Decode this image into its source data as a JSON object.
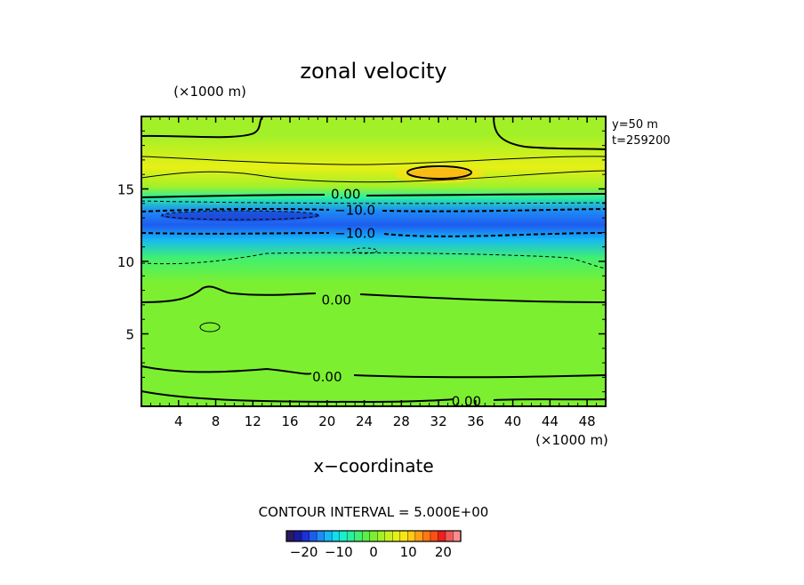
{
  "chart_data": {
    "type": "heatmap",
    "title": "zonal velocity",
    "xlabel": "x−coordinate",
    "x_unit": "(×1000 m)",
    "y_unit": "(×1000 m)",
    "info_lines": [
      "y=50  m",
      "t=259200"
    ],
    "xlim": [
      0,
      50
    ],
    "ylim": [
      0,
      20
    ],
    "x_ticks": [
      4,
      8,
      12,
      16,
      20,
      24,
      28,
      32,
      36,
      40,
      44,
      48
    ],
    "y_ticks": [
      5,
      10,
      15
    ],
    "contour_interval_text": "CONTOUR INTERVAL = 5.000E+00",
    "contour_labels": [
      {
        "text": "0.00",
        "x": 22,
        "y": 14.7
      },
      {
        "text": "−10.0",
        "x": 23,
        "y": 13.6
      },
      {
        "text": "−10.0",
        "x": 23,
        "y": 12.0
      },
      {
        "text": "0.00",
        "x": 21,
        "y": 7.4
      },
      {
        "text": "0.00",
        "x": 20,
        "y": 2.1
      },
      {
        "text": "0.00",
        "x": 35,
        "y": 0.4
      }
    ],
    "colorbar": {
      "range": [
        -25,
        25
      ],
      "tick_values": [
        -20,
        -10,
        0,
        10,
        20
      ],
      "tick_labels": [
        "−20",
        "−10",
        "0",
        "10",
        "20"
      ],
      "colors": [
        "#2a1a5e",
        "#1a1aa0",
        "#1a32d6",
        "#1e5cf0",
        "#1e8cf5",
        "#16b8f5",
        "#14dcee",
        "#18f0cc",
        "#2af0a0",
        "#40f070",
        "#5af048",
        "#7cf030",
        "#a2f028",
        "#c8f020",
        "#e6f016",
        "#f8e614",
        "#ffc814",
        "#ffa014",
        "#ff7814",
        "#ff5014",
        "#f01e1e",
        "#ee5a5a",
        "#ff8c8c"
      ]
    },
    "field_bands": [
      {
        "y_from": 0,
        "y_to": 2,
        "value": 0
      },
      {
        "y_from": 2,
        "y_to": 5,
        "value": 1
      },
      {
        "y_from": 5,
        "y_to": 7.5,
        "value": 0.5
      },
      {
        "y_from": 7.5,
        "y_to": 9.5,
        "value": -1
      },
      {
        "y_from": 9.5,
        "y_to": 11,
        "value": -5
      },
      {
        "y_from": 11,
        "y_to": 12,
        "value": -12
      },
      {
        "y_from": 12,
        "y_to": 13,
        "value": -17
      },
      {
        "y_from": 13,
        "y_to": 14,
        "value": -16
      },
      {
        "y_from": 14,
        "y_to": 14.8,
        "value": -7
      },
      {
        "y_from": 14.8,
        "y_to": 15.5,
        "value": 2
      },
      {
        "y_from": 15.5,
        "y_to": 17.5,
        "value": 7
      },
      {
        "y_from": 17.5,
        "y_to": 20,
        "value": 2
      }
    ],
    "max_blob": {
      "x": 32.5,
      "y": 16.2,
      "value": 12
    }
  }
}
